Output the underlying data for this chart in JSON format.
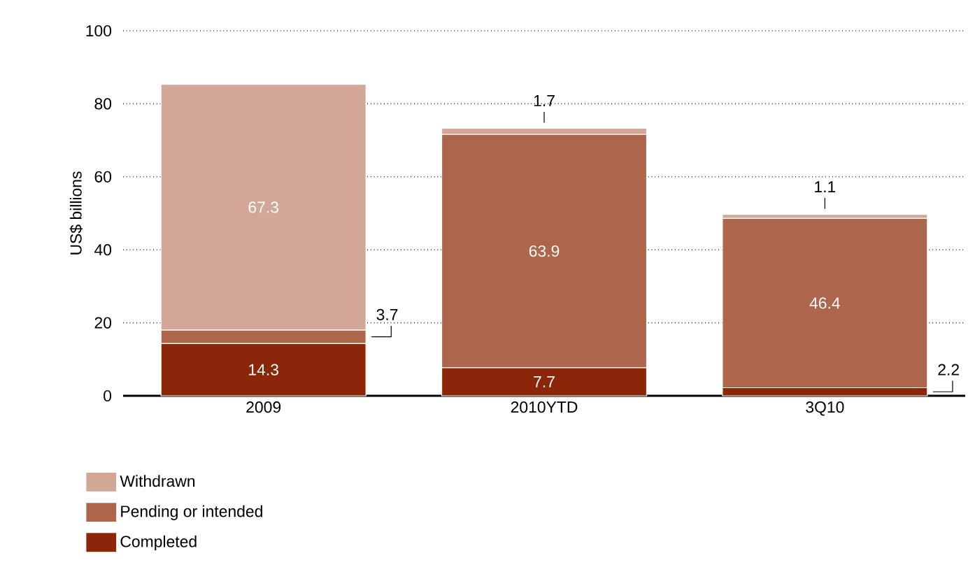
{
  "chart_data": {
    "type": "bar",
    "stacked": true,
    "ylabel": "US$ billions",
    "categories": [
      "2009",
      "2010YTD",
      "3Q10"
    ],
    "series": [
      {
        "name": "Completed",
        "color": "#8b2708",
        "values": [
          14.3,
          7.7,
          2.2
        ]
      },
      {
        "name": "Pending or intended",
        "color": "#ad654b",
        "values": [
          3.7,
          63.9,
          46.4
        ]
      },
      {
        "name": "Withdrawn",
        "color": "#d3a797",
        "values": [
          67.3,
          1.7,
          1.1
        ]
      }
    ],
    "ylim": [
      0,
      100
    ],
    "yticks": [
      0,
      20,
      40,
      60,
      80,
      100
    ],
    "grid": "y",
    "legend": "bottom left",
    "data_labels": true
  }
}
